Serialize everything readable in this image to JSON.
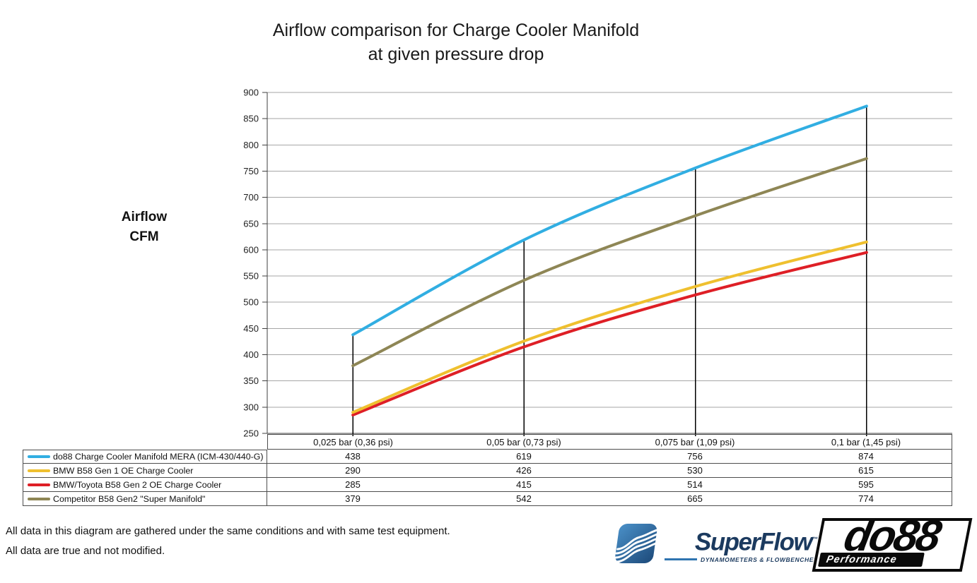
{
  "title": {
    "line1": "Airflow comparison for Charge Cooler Manifold",
    "line2": "at given pressure drop"
  },
  "y_axis_label": {
    "line1": "Airflow",
    "line2": "CFM"
  },
  "footer": {
    "line1": "All data in this diagram are gathered under the same conditions and with same test equipment.",
    "line2": "All data are true and not modified."
  },
  "logos": {
    "superflow": {
      "name": "SuperFlow",
      "trademark": "™",
      "tagline": "DYNAMOMETERS & FLOWBENCHES",
      "navy": "#1b3a5f",
      "blue": "#2f74b0",
      "gradient_light": "#4a90c8",
      "gradient_dark": "#1d4a7a"
    },
    "do88": {
      "name": "do88",
      "tagline": "Performance"
    }
  },
  "chart_data": {
    "type": "line",
    "title": "Airflow comparison for Charge Cooler Manifold at given pressure drop",
    "ylabel": "Airflow CFM",
    "xlabel": "",
    "x_categories": [
      "0,025 bar (0,36 psi)",
      "0,05 bar (0,73 psi)",
      "0,075 bar (1,09 psi)",
      "0,1 bar (1,45 psi)"
    ],
    "series": [
      {
        "name": "do88 Charge Cooler Manifold MERA (ICM-430/440-G)",
        "color": "#31aee2",
        "values": [
          438,
          619,
          756,
          874
        ]
      },
      {
        "name": "BMW B58 Gen 1 OE Charge Cooler",
        "color": "#efc02f",
        "values": [
          290,
          426,
          530,
          615
        ]
      },
      {
        "name": "BMW/Toyota B58 Gen 2 OE Charge Cooler",
        "color": "#de1f26",
        "values": [
          285,
          415,
          514,
          595
        ]
      },
      {
        "name": "Competitor B58 Gen2 \"Super Manifold\"",
        "color": "#8e8655",
        "values": [
          379,
          542,
          665,
          774
        ]
      }
    ],
    "ylim": [
      250,
      900
    ],
    "ystep": 50,
    "grid": "horizontal",
    "gridline_color": "#a6a6a6",
    "axis_color": "#3f3f3f",
    "marker_line_color": "#000000",
    "legend_position": "table-below",
    "notes": "vertical black marker line at each x position reaching the top (do88) series"
  }
}
